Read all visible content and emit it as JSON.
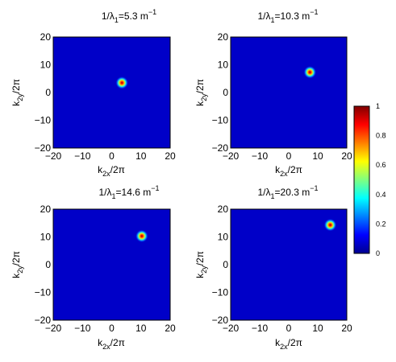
{
  "chart_data": [
    {
      "type": "heatmap",
      "title": {
        "pre": "1/λ",
        "sub": "1",
        "mid": "=5.3 m",
        "sup": "−1"
      },
      "xlabel": {
        "base": "k",
        "sub": "2x",
        "rest": "/2π"
      },
      "ylabel": {
        "base": "k",
        "sub": "2y",
        "rest": "/2π"
      },
      "xlim": [
        -20,
        20
      ],
      "ylim": [
        -20,
        20
      ],
      "xticks": [
        "−20",
        "−10",
        "0",
        "10",
        "20"
      ],
      "yticks": [
        "−20",
        "−10",
        "0",
        "10",
        "20"
      ],
      "peak": {
        "x": 3.5,
        "y": 3.5,
        "value": 1
      }
    },
    {
      "type": "heatmap",
      "title": {
        "pre": "1/λ",
        "sub": "1",
        "mid": "=10.3 m",
        "sup": "−1"
      },
      "xlabel": {
        "base": "k",
        "sub": "2x",
        "rest": "/2π"
      },
      "ylabel": {
        "base": "k",
        "sub": "2y",
        "rest": "/2π"
      },
      "xlim": [
        -20,
        20
      ],
      "ylim": [
        -20,
        20
      ],
      "xticks": [
        "−20",
        "−10",
        "0",
        "10",
        "20"
      ],
      "yticks": [
        "−20",
        "−10",
        "0",
        "10",
        "20"
      ],
      "peak": {
        "x": 7.3,
        "y": 7.3,
        "value": 1
      }
    },
    {
      "type": "heatmap",
      "title": {
        "pre": "1/λ",
        "sub": "1",
        "mid": "=14.6 m",
        "sup": "−1"
      },
      "xlabel": {
        "base": "k",
        "sub": "2x",
        "rest": "/2π"
      },
      "ylabel": {
        "base": "k",
        "sub": "2y",
        "rest": "/2π"
      },
      "xlim": [
        -20,
        20
      ],
      "ylim": [
        -20,
        20
      ],
      "xticks": [
        "−20",
        "−10",
        "0",
        "10",
        "20"
      ],
      "yticks": [
        "−20",
        "−10",
        "0",
        "10",
        "20"
      ],
      "peak": {
        "x": 10.3,
        "y": 10.3,
        "value": 1
      }
    },
    {
      "type": "heatmap",
      "title": {
        "pre": "1/λ",
        "sub": "1",
        "mid": "=20.3 m",
        "sup": "−1"
      },
      "xlabel": {
        "base": "k",
        "sub": "2x",
        "rest": "/2π"
      },
      "ylabel": {
        "base": "k",
        "sub": "2y",
        "rest": "/2π"
      },
      "xlim": [
        -20,
        20
      ],
      "ylim": [
        -20,
        20
      ],
      "xticks": [
        "−20",
        "−10",
        "0",
        "10",
        "20"
      ],
      "yticks": [
        "−20",
        "−10",
        "0",
        "10",
        "20"
      ],
      "peak": {
        "x": 14.3,
        "y": 14.3,
        "value": 1
      }
    }
  ],
  "colorbar": {
    "colormap": "jet",
    "range": [
      0,
      1
    ],
    "ticks": [
      "0",
      "0.2",
      "0.4",
      "0.6",
      "0.8",
      "1"
    ],
    "tick_values": [
      0,
      0.2,
      0.4,
      0.6,
      0.8,
      1
    ]
  },
  "colors": {
    "background": "#0000c8",
    "axis": "#000000"
  }
}
